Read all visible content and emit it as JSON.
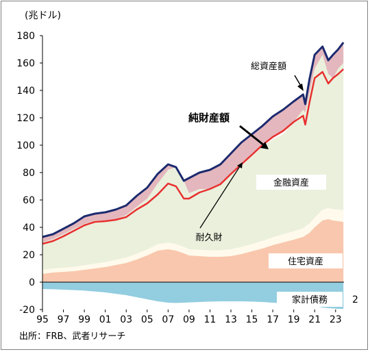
{
  "chart_data": {
    "type": "area",
    "y_unit_label": "(兆ドル)",
    "ylim": [
      -20,
      180
    ],
    "yticks": [
      -20,
      0,
      20,
      40,
      60,
      80,
      100,
      120,
      140,
      160,
      180
    ],
    "xlim": [
      1995,
      2023.8
    ],
    "xtick_values": [
      1995,
      1997,
      1999,
      2001,
      2003,
      2005,
      2007,
      2009,
      2011,
      2013,
      2015,
      2017,
      2019,
      2021,
      2023
    ],
    "xtick_labels": [
      "95",
      "97",
      "99",
      "01",
      "03",
      "05",
      "07",
      "09",
      "11",
      "13",
      "15",
      "17",
      "19",
      "21",
      "23"
    ],
    "grid": false,
    "x": [
      1995,
      1996,
      1997,
      1998,
      1999,
      2000,
      2001,
      2002,
      2003,
      2004,
      2005,
      2006,
      2007,
      2007.75,
      2008.5,
      2009,
      2010,
      2011,
      2012,
      2013,
      2014,
      2015,
      2016,
      2017,
      2018,
      2019,
      2019.9,
      2020.1,
      2020.5,
      2021,
      2021.75,
      2022.3,
      2022.75,
      2023.25,
      2023.75
    ],
    "series": [
      {
        "name": "住宅資産",
        "color": "#f9c7ad",
        "values": [
          6,
          7,
          7.5,
          8,
          9,
          10,
          11,
          12.5,
          14,
          16.5,
          19.5,
          23,
          24,
          23,
          21,
          19.5,
          19,
          18.5,
          18.5,
          19,
          20.5,
          22.5,
          24.5,
          27,
          29,
          31,
          33,
          34,
          36,
          40,
          45,
          46,
          45,
          44.5,
          44
        ]
      },
      {
        "name": "耐久財",
        "color": "#fffaeb",
        "values": [
          3,
          3,
          3,
          3.2,
          3.3,
          3.5,
          3.6,
          3.8,
          4,
          4.2,
          4.4,
          4.6,
          4.8,
          4.8,
          4.6,
          4.5,
          4.6,
          4.7,
          4.8,
          5,
          5.1,
          5.3,
          5.5,
          5.7,
          6,
          6.2,
          6.4,
          6.6,
          6.8,
          7.2,
          7.8,
          8.2,
          8.4,
          8.5,
          8.6
        ]
      },
      {
        "name": "金融資産",
        "color": "#eaf0dc",
        "values": [
          20,
          21.5,
          24.5,
          27.8,
          30.2,
          31.5,
          30.4,
          29.7,
          31,
          34.3,
          37.1,
          44.4,
          53.2,
          56.2,
          48.4,
          41,
          44.4,
          44.8,
          47.7,
          55,
          58.4,
          66.2,
          69,
          71.3,
          73,
          79.8,
          86.6,
          83.4,
          95.2,
          108.8,
          113.2,
          97.8,
          95.6,
          103,
          107.4
        ]
      },
      {
        "name": "家計債務",
        "color": "#92cde0",
        "values": [
          -5,
          -5.2,
          -5.5,
          -5.8,
          -6.2,
          -6.8,
          -7.5,
          -8.5,
          -9.5,
          -11,
          -12.5,
          -14,
          -15,
          -15.2,
          -15,
          -14.8,
          -14.5,
          -14.2,
          -14,
          -14,
          -14,
          -14.2,
          -14.5,
          -15,
          -15.5,
          -16,
          -16.5,
          -16.6,
          -16.8,
          -17.5,
          -18.5,
          -19,
          -19.2,
          -19.5,
          -19.5
        ]
      },
      {
        "name": "総資産額",
        "color": "#1c2a6e",
        "values": [
          33,
          35,
          39,
          43,
          48,
          50,
          51,
          53,
          56,
          63,
          69,
          79,
          86,
          84,
          74,
          76,
          80,
          82,
          86,
          94,
          102,
          108,
          114,
          121,
          126,
          132,
          137,
          130,
          148,
          166,
          172,
          162,
          166,
          170,
          175
        ]
      },
      {
        "name": "純財産額",
        "color": "#e83030",
        "values": [
          28,
          30,
          33.5,
          37.5,
          41.5,
          44,
          44.5,
          45.5,
          47.5,
          53,
          57.5,
          64,
          72,
          70,
          61,
          61,
          65.5,
          68,
          71.5,
          79,
          86,
          93,
          100,
          106,
          110.5,
          117,
          121.5,
          115,
          131,
          149,
          153.5,
          145,
          149,
          152,
          155.5
        ]
      }
    ],
    "labels": {
      "total_assets": "総資産額",
      "net_worth": "純財産額",
      "financial_assets": "金融資産",
      "durables": "耐久財",
      "housing": "住宅資産",
      "debt": "家計債務",
      "side_note": "2"
    }
  },
  "source": "出所：FRB、武者リサーチ"
}
